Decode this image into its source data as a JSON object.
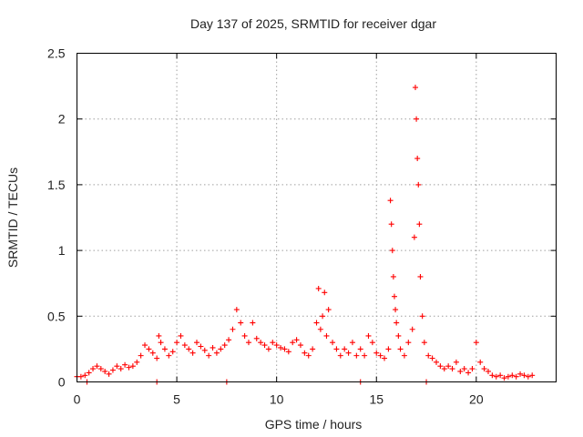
{
  "chart_data": {
    "type": "scatter",
    "title": "Day 137 of 2025, SRMTID for receiver dgar",
    "xlabel": "GPS time / hours",
    "ylabel": "SRMTID / TECUs",
    "xlim": [
      0,
      24
    ],
    "ylim": [
      0,
      2.5
    ],
    "xticks": [
      0,
      5,
      10,
      15,
      20
    ],
    "yticks": [
      0,
      0.5,
      1,
      1.5,
      2,
      2.5
    ],
    "xtick_labels": [
      "0",
      "5",
      "10",
      "15",
      "20"
    ],
    "ytick_labels": [
      "0",
      "0.5",
      "1",
      "1.5",
      "2",
      "2.5"
    ],
    "grid": true,
    "marker": "plus",
    "color": "#ff0000",
    "series": [
      {
        "name": "SRMTID",
        "x": [
          0.0,
          0.2,
          0.4,
          0.6,
          0.8,
          1.0,
          1.2,
          1.4,
          1.6,
          1.8,
          2.0,
          2.2,
          2.4,
          2.6,
          2.8,
          3.0,
          3.2,
          3.4,
          3.6,
          3.8,
          4.0,
          4.1,
          4.2,
          4.4,
          4.6,
          4.8,
          5.0,
          5.2,
          5.4,
          5.6,
          5.8,
          6.0,
          6.2,
          6.4,
          6.6,
          6.8,
          7.0,
          7.2,
          7.4,
          7.6,
          7.8,
          8.0,
          8.2,
          8.4,
          8.6,
          8.8,
          9.0,
          9.2,
          9.4,
          9.6,
          9.8,
          10.0,
          10.2,
          10.4,
          10.6,
          10.8,
          11.0,
          11.2,
          11.4,
          11.6,
          11.8,
          12.0,
          12.1,
          12.2,
          12.3,
          12.4,
          12.5,
          12.6,
          12.8,
          13.0,
          13.2,
          13.4,
          13.6,
          13.8,
          14.0,
          14.2,
          14.4,
          14.6,
          14.8,
          15.0,
          15.2,
          15.4,
          15.6,
          15.7,
          15.75,
          15.8,
          15.85,
          15.9,
          15.95,
          16.0,
          16.1,
          16.2,
          16.4,
          16.6,
          16.8,
          16.9,
          16.95,
          17.0,
          17.05,
          17.1,
          17.15,
          17.2,
          17.3,
          17.4,
          17.6,
          17.8,
          18.0,
          18.2,
          18.4,
          18.6,
          18.8,
          19.0,
          19.2,
          19.4,
          19.6,
          19.8,
          20.0,
          20.2,
          20.4,
          20.6,
          20.8,
          21.0,
          21.2,
          21.4,
          21.6,
          21.8,
          22.0,
          22.2,
          22.4,
          22.6,
          22.8,
          4.0,
          7.5,
          14.2,
          17.5,
          0.5
        ],
        "y": [
          0.04,
          0.04,
          0.05,
          0.07,
          0.1,
          0.12,
          0.1,
          0.08,
          0.06,
          0.09,
          0.12,
          0.1,
          0.13,
          0.11,
          0.12,
          0.15,
          0.2,
          0.28,
          0.25,
          0.22,
          0.18,
          0.35,
          0.3,
          0.25,
          0.2,
          0.23,
          0.3,
          0.35,
          0.28,
          0.25,
          0.22,
          0.3,
          0.27,
          0.24,
          0.2,
          0.26,
          0.22,
          0.25,
          0.28,
          0.32,
          0.4,
          0.55,
          0.45,
          0.35,
          0.3,
          0.45,
          0.33,
          0.3,
          0.28,
          0.25,
          0.3,
          0.28,
          0.26,
          0.25,
          0.23,
          0.3,
          0.32,
          0.28,
          0.22,
          0.2,
          0.25,
          0.45,
          0.71,
          0.4,
          0.5,
          0.68,
          0.35,
          0.55,
          0.3,
          0.25,
          0.2,
          0.25,
          0.22,
          0.3,
          0.2,
          0.25,
          0.2,
          0.35,
          0.3,
          0.22,
          0.2,
          0.18,
          0.25,
          1.38,
          1.2,
          1.0,
          0.8,
          0.65,
          0.55,
          0.45,
          0.35,
          0.25,
          0.2,
          0.3,
          0.4,
          1.1,
          2.24,
          2.0,
          1.7,
          1.5,
          1.2,
          0.8,
          0.5,
          0.3,
          0.2,
          0.18,
          0.15,
          0.12,
          0.1,
          0.12,
          0.1,
          0.15,
          0.08,
          0.1,
          0.07,
          0.1,
          0.3,
          0.15,
          0.1,
          0.08,
          0.05,
          0.04,
          0.05,
          0.03,
          0.04,
          0.05,
          0.04,
          0.06,
          0.05,
          0.04,
          0.05,
          0.0,
          0.0,
          0.0,
          0.0,
          0.0
        ]
      }
    ]
  }
}
